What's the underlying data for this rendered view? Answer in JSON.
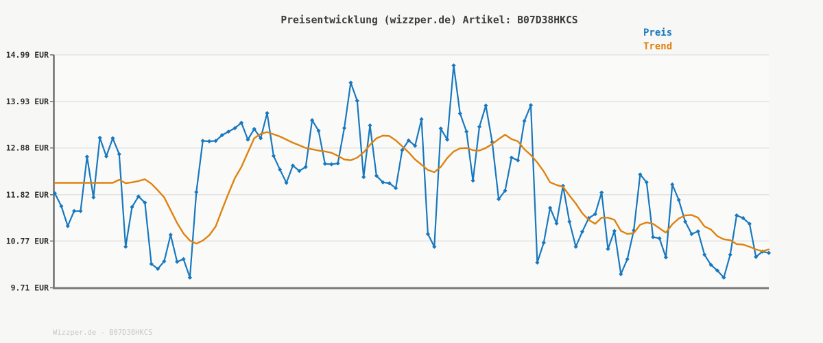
{
  "title": "Preisentwicklung (wizzper.de) Artikel: B07D38HKCS",
  "footer": {
    "text": "Wizzper.de - B07D38HKCS"
  },
  "legend": {
    "price_label": "Preis",
    "trend_label": "Trend"
  },
  "colors": {
    "price": "#1878be",
    "trend": "#de820f",
    "grid": "#e4e4e3",
    "axis_spine": "#6f6f6f",
    "bottom_spine": "#7a7a7a",
    "tick_text": "#2e2e2e",
    "title_text": "#3b3b3b",
    "footer_text": "#c6c9c9",
    "background": "#f7f7f6",
    "plot_background": "#fafaf9"
  },
  "chart_data": {
    "type": "line",
    "title": "Preisentwicklung (wizzper.de) Artikel: B07D38HKCS",
    "xlabel": "",
    "ylabel": "",
    "currency": "EUR",
    "ylim": [
      9.71,
      14.99
    ],
    "grid": true,
    "x_axis_labels_visible": false,
    "legend_position": "top-right",
    "y_ticks": [
      {
        "value": 14.99,
        "label": "14.99 EUR"
      },
      {
        "value": 13.93,
        "label": "13.93 EUR"
      },
      {
        "value": 12.88,
        "label": "12.88 EUR"
      },
      {
        "value": 11.82,
        "label": "11.82 EUR"
      },
      {
        "value": 10.77,
        "label": "10.77 EUR"
      },
      {
        "value": 9.71,
        "label": "9.71 EUR"
      }
    ],
    "series": [
      {
        "name": "Preis",
        "color": "#1878be",
        "marker": "diamond",
        "values": [
          11.85,
          11.56,
          11.11,
          11.45,
          11.45,
          12.68,
          11.76,
          13.11,
          12.69,
          13.1,
          12.74,
          10.64,
          11.54,
          11.78,
          11.64,
          10.25,
          10.14,
          10.31,
          10.91,
          10.3,
          10.36,
          9.94,
          11.88,
          13.04,
          13.03,
          13.04,
          13.17,
          13.25,
          13.33,
          13.45,
          13.07,
          13.31,
          13.1,
          13.67,
          12.7,
          12.39,
          12.09,
          12.48,
          12.36,
          12.45,
          13.51,
          13.27,
          12.52,
          12.51,
          12.53,
          13.33,
          14.36,
          13.95,
          12.22,
          13.39,
          12.25,
          12.1,
          12.08,
          11.97,
          12.83,
          13.05,
          12.93,
          13.53,
          10.93,
          10.64,
          13.32,
          13.07,
          14.75,
          13.66,
          13.25,
          12.14,
          13.36,
          13.84,
          13.01,
          11.72,
          11.91,
          12.66,
          12.6,
          13.49,
          13.85,
          10.28,
          10.73,
          11.52,
          11.17,
          12.02,
          11.21,
          10.64,
          10.98,
          11.29,
          11.38,
          11.87,
          10.59,
          11.0,
          10.02,
          10.36,
          11.01,
          12.28,
          12.1,
          10.86,
          10.83,
          10.4,
          12.05,
          11.7,
          11.21,
          10.93,
          10.99,
          10.46,
          10.23,
          10.1,
          9.94,
          10.46,
          11.35,
          11.29,
          11.16,
          10.41,
          10.53,
          10.5
        ]
      },
      {
        "name": "Trend",
        "color": "#de820f",
        "marker": "none",
        "values": [
          12.09,
          12.09,
          12.09,
          12.09,
          12.09,
          12.09,
          12.09,
          12.09,
          12.09,
          12.09,
          12.16,
          12.08,
          12.1,
          12.13,
          12.17,
          12.07,
          11.92,
          11.76,
          11.47,
          11.18,
          10.94,
          10.78,
          10.71,
          10.78,
          10.9,
          11.1,
          11.48,
          11.85,
          12.2,
          12.45,
          12.78,
          13.1,
          13.2,
          13.24,
          13.19,
          13.14,
          13.07,
          13.0,
          12.94,
          12.88,
          12.85,
          12.82,
          12.8,
          12.77,
          12.7,
          12.62,
          12.6,
          12.66,
          12.78,
          12.95,
          13.1,
          13.16,
          13.15,
          13.05,
          12.92,
          12.78,
          12.62,
          12.5,
          12.38,
          12.33,
          12.45,
          12.65,
          12.8,
          12.87,
          12.88,
          12.83,
          12.82,
          12.88,
          12.97,
          13.08,
          13.18,
          13.08,
          13.03,
          12.85,
          12.72,
          12.55,
          12.35,
          12.1,
          12.04,
          12.0,
          11.8,
          11.62,
          11.4,
          11.25,
          11.16,
          11.3,
          11.3,
          11.25,
          11.0,
          10.93,
          10.95,
          11.14,
          11.19,
          11.16,
          11.06,
          10.96,
          11.15,
          11.28,
          11.35,
          11.36,
          11.3,
          11.1,
          11.03,
          10.88,
          10.81,
          10.79,
          10.7,
          10.69,
          10.64,
          10.58,
          10.54,
          10.58
        ]
      }
    ]
  }
}
